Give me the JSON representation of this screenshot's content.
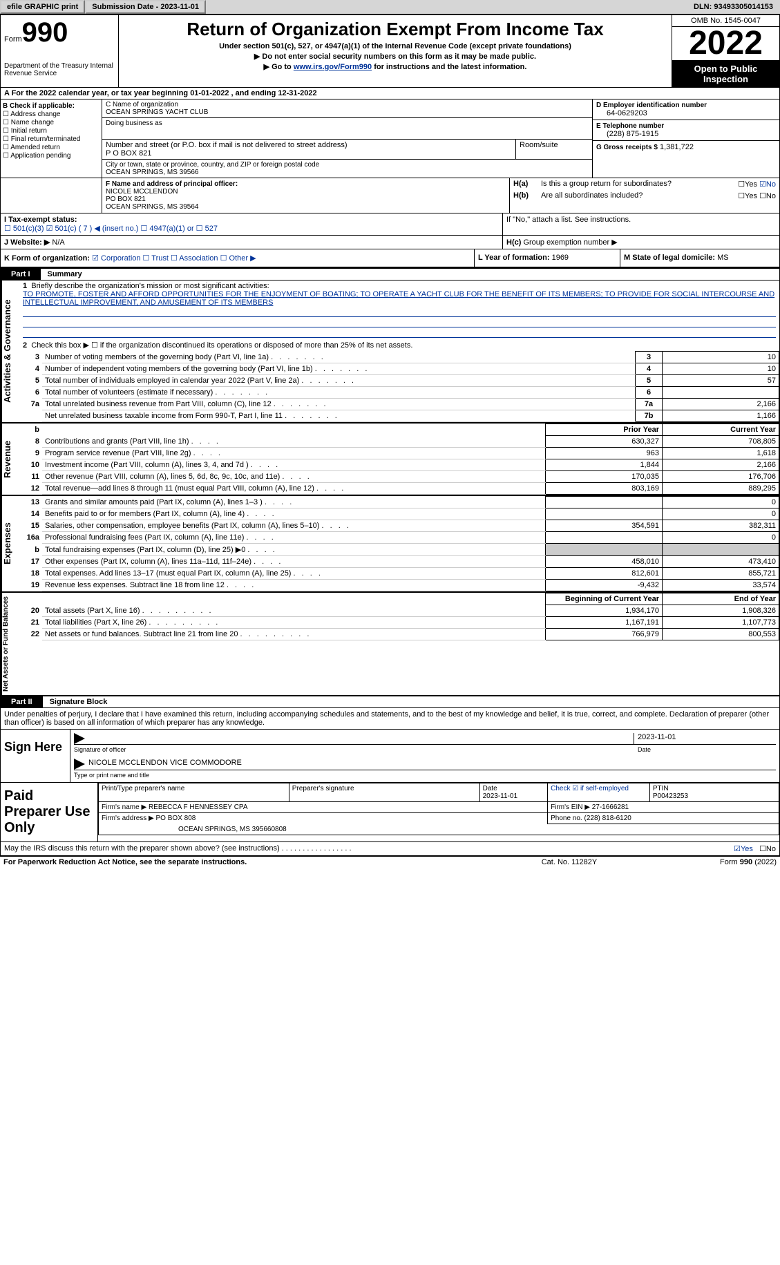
{
  "topbar": {
    "efile_btn": "efile GRAPHIC print",
    "sub_date_label": "Submission Date - 2023-11-01",
    "dln": "DLN: 93493305014153"
  },
  "header": {
    "form_label": "Form",
    "form_no": "990",
    "dept": "Department of the Treasury Internal Revenue Service",
    "title": "Return of Organization Exempt From Income Tax",
    "sub1": "Under section 501(c), 527, or 4947(a)(1) of the Internal Revenue Code (except private foundations)",
    "sub2": "▶ Do not enter social security numbers on this form as it may be made public.",
    "sub3_pre": "▶ Go to ",
    "sub3_link": "www.irs.gov/Form990",
    "sub3_post": " for instructions and the latest information.",
    "omb": "OMB No. 1545-0047",
    "year": "2022",
    "open": "Open to Public Inspection"
  },
  "cal_year": "A For the 2022 calendar year, or tax year beginning 01-01-2022    , and ending 12-31-2022",
  "colB": {
    "label": "B Check if applicable:",
    "items": [
      "Address change",
      "Name change",
      "Initial return",
      "Final return/terminated",
      "Amended return",
      "Application pending"
    ]
  },
  "colC": {
    "name_label": "C Name of organization",
    "name": "OCEAN SPRINGS YACHT CLUB",
    "dba_label": "Doing business as",
    "addr_label": "Number and street (or P.O. box if mail is not delivered to street address)",
    "addr": "P O BOX 821",
    "room_label": "Room/suite",
    "city_label": "City or town, state or province, country, and ZIP or foreign postal code",
    "city": "OCEAN SPRINGS, MS  39566"
  },
  "colD": {
    "ein_label": "D Employer identification number",
    "ein": "64-0629203",
    "phone_label": "E Telephone number",
    "phone": "(228) 875-1915",
    "gross_label": "G Gross receipts $",
    "gross": "1,381,722"
  },
  "principal": {
    "label": "F Name and address of principal officer:",
    "name": "NICOLE MCCLENDON",
    "addr1": "PO BOX 821",
    "addr2": "OCEAN SPRINGS, MS  39564"
  },
  "H": {
    "a": "Is this a group return for subordinates?",
    "a_yes": "☐Yes",
    "a_no": "☑No",
    "b": "Are all subordinates included?",
    "b_yes": "☐Yes",
    "b_no": "☐No",
    "b_note": "If \"No,\" attach a list. See instructions.",
    "c": "Group exemption number ▶"
  },
  "I": {
    "label": "I    Tax-exempt status:",
    "opts": "☐ 501(c)(3)   ☑ 501(c) ( 7 ) ◀ (insert no.)   ☐ 4947(a)(1) or   ☐ 527"
  },
  "J": {
    "label": "J   Website: ▶",
    "value": "N/A"
  },
  "K": {
    "label": "K Form of organization:",
    "opts": "☑ Corporation  ☐ Trust  ☐ Association  ☐ Other ▶"
  },
  "L": {
    "label": "L Year of formation:",
    "value": "1969"
  },
  "M": {
    "label": "M State of legal domicile:",
    "value": "MS"
  },
  "part1": {
    "tab": "Part I",
    "title": "Summary"
  },
  "mission": {
    "label": "Briefly describe the organization's mission or most significant activities:",
    "text": "TO PROMOTE, FOSTER AND AFFORD OPPORTUNITIES FOR THE ENJOYMENT OF BOATING; TO OPERATE A YACHT CLUB FOR THE BENEFIT OF ITS MEMBERS; TO PROVIDE FOR SOCIAL INTERCOURSE AND INTELLECTUAL IMPROVEMENT, AND AMUSEMENT OF ITS MEMBERS"
  },
  "line2": "Check this box ▶ ☐ if the organization discontinued its operations or disposed of more than 25% of its net assets.",
  "gov_lines": [
    {
      "n": "3",
      "t": "Number of voting members of the governing body (Part VI, line 1a)",
      "box": "3",
      "v": "10"
    },
    {
      "n": "4",
      "t": "Number of independent voting members of the governing body (Part VI, line 1b)",
      "box": "4",
      "v": "10"
    },
    {
      "n": "5",
      "t": "Total number of individuals employed in calendar year 2022 (Part V, line 2a)",
      "box": "5",
      "v": "57"
    },
    {
      "n": "6",
      "t": "Total number of volunteers (estimate if necessary)",
      "box": "6",
      "v": ""
    },
    {
      "n": "7a",
      "t": "Total unrelated business revenue from Part VIII, column (C), line 12",
      "box": "7a",
      "v": "2,166"
    },
    {
      "n": "",
      "t": "Net unrelated business taxable income from Form 990-T, Part I, line 11",
      "box": "7b",
      "v": "1,166"
    }
  ],
  "rev_header": {
    "prior": "Prior Year",
    "curr": "Current Year"
  },
  "rev_lines": [
    {
      "n": "8",
      "t": "Contributions and grants (Part VIII, line 1h)",
      "p": "630,327",
      "c": "708,805"
    },
    {
      "n": "9",
      "t": "Program service revenue (Part VIII, line 2g)",
      "p": "963",
      "c": "1,618"
    },
    {
      "n": "10",
      "t": "Investment income (Part VIII, column (A), lines 3, 4, and 7d )",
      "p": "1,844",
      "c": "2,166"
    },
    {
      "n": "11",
      "t": "Other revenue (Part VIII, column (A), lines 5, 6d, 8c, 9c, 10c, and 11e)",
      "p": "170,035",
      "c": "176,706"
    },
    {
      "n": "12",
      "t": "Total revenue—add lines 8 through 11 (must equal Part VIII, column (A), line 12)",
      "p": "803,169",
      "c": "889,295"
    }
  ],
  "exp_lines": [
    {
      "n": "13",
      "t": "Grants and similar amounts paid (Part IX, column (A), lines 1–3 )",
      "p": "",
      "c": "0"
    },
    {
      "n": "14",
      "t": "Benefits paid to or for members (Part IX, column (A), line 4)",
      "p": "",
      "c": "0"
    },
    {
      "n": "15",
      "t": "Salaries, other compensation, employee benefits (Part IX, column (A), lines 5–10)",
      "p": "354,591",
      "c": "382,311"
    },
    {
      "n": "16a",
      "t": "Professional fundraising fees (Part IX, column (A), line 11e)",
      "p": "",
      "c": "0"
    },
    {
      "n": "b",
      "t": "Total fundraising expenses (Part IX, column (D), line 25) ▶0",
      "p": "GREY",
      "c": "GREY"
    },
    {
      "n": "17",
      "t": "Other expenses (Part IX, column (A), lines 11a–11d, 11f–24e)",
      "p": "458,010",
      "c": "473,410"
    },
    {
      "n": "18",
      "t": "Total expenses. Add lines 13–17 (must equal Part IX, column (A), line 25)",
      "p": "812,601",
      "c": "855,721"
    },
    {
      "n": "19",
      "t": "Revenue less expenses. Subtract line 18 from line 12",
      "p": "-9,432",
      "c": "33,574"
    }
  ],
  "net_header": {
    "prior": "Beginning of Current Year",
    "curr": "End of Year"
  },
  "net_lines": [
    {
      "n": "20",
      "t": "Total assets (Part X, line 16)",
      "p": "1,934,170",
      "c": "1,908,326"
    },
    {
      "n": "21",
      "t": "Total liabilities (Part X, line 26)",
      "p": "1,167,191",
      "c": "1,107,773"
    },
    {
      "n": "22",
      "t": "Net assets or fund balances. Subtract line 21 from line 20",
      "p": "766,979",
      "c": "800,553"
    }
  ],
  "side_tabs": {
    "gov": "Activities & Governance",
    "rev": "Revenue",
    "exp": "Expenses",
    "net": "Net Assets or Fund Balances"
  },
  "part2": {
    "tab": "Part II",
    "title": "Signature Block"
  },
  "sig_cert": "Under penalties of perjury, I declare that I have examined this return, including accompanying schedules and statements, and to the best of my knowledge and belief, it is true, correct, and complete. Declaration of preparer (other than officer) is based on all information of which preparer has any knowledge.",
  "sign": {
    "label": "Sign Here",
    "sig_cap": "Signature of officer",
    "date": "2023-11-01",
    "date_cap": "Date",
    "name": "NICOLE MCCLENDON  VICE COMMODORE",
    "name_cap": "Type or print name and title"
  },
  "prep": {
    "label": "Paid Preparer Use Only",
    "r1": {
      "c1": "Print/Type preparer's name",
      "c2": "Preparer's signature",
      "c3": "Date",
      "c3v": "2023-11-01",
      "c4": "Check ☑ if self-employed",
      "c5": "PTIN",
      "c5v": "P00423253"
    },
    "r2": {
      "c1": "Firm's name    ▶",
      "c1v": "REBECCA F HENNESSEY CPA",
      "c2": "Firm's EIN ▶",
      "c2v": "27-1666281"
    },
    "r3": {
      "c1": "Firm's address ▶",
      "c1v": "PO BOX 808",
      "c2": "Phone no.",
      "c2v": "(228) 818-6120"
    },
    "r4": {
      "c1": "OCEAN SPRINGS, MS  395660808"
    }
  },
  "discuss": {
    "text": "May the IRS discuss this return with the preparer shown above? (see instructions)",
    "yes": "☑Yes",
    "no": "☐No"
  },
  "footer": {
    "left": "For Paperwork Reduction Act Notice, see the separate instructions.",
    "center": "Cat. No. 11282Y",
    "right": "Form 990 (2022)"
  }
}
